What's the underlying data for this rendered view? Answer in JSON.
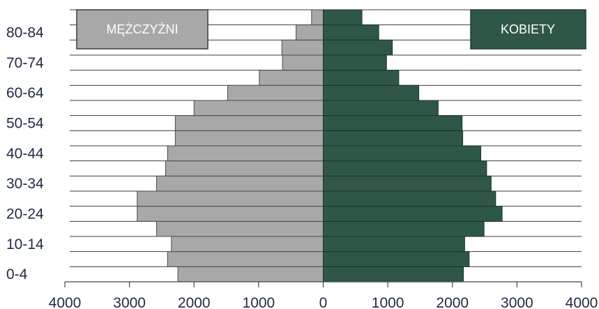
{
  "chart_data": {
    "type": "bar",
    "orientation": "horizontal",
    "layout": "population-pyramid",
    "grid": true,
    "age_groups": [
      "0-4",
      "5-9",
      "10-14",
      "15-19",
      "20-24",
      "25-29",
      "30-34",
      "35-39",
      "40-44",
      "45-49",
      "50-54",
      "55-59",
      "60-64",
      "65-69",
      "70-74",
      "75-79",
      "80-84",
      "85+"
    ],
    "visible_age_labels": [
      "0-4",
      "10-14",
      "20-24",
      "30-34",
      "40-44",
      "50-54",
      "60-64",
      "70-74",
      "80-84"
    ],
    "series": [
      {
        "name": "MĘŻCZYŹNI",
        "side": "left",
        "color": "#a8a8a8",
        "values": [
          2250,
          2410,
          2350,
          2580,
          2880,
          2880,
          2580,
          2440,
          2410,
          2290,
          2290,
          2000,
          1480,
          990,
          630,
          640,
          420,
          180
        ]
      },
      {
        "name": "KOBIETY",
        "side": "right",
        "color": "#2f5747",
        "values": [
          2170,
          2260,
          2190,
          2490,
          2770,
          2670,
          2600,
          2530,
          2440,
          2160,
          2150,
          1780,
          1480,
          1170,
          980,
          1070,
          860,
          600
        ]
      }
    ],
    "xaxis": {
      "range": [
        -4000,
        4000
      ],
      "ticks": [
        -4000,
        -3000,
        -2000,
        -1000,
        0,
        1000,
        2000,
        3000,
        4000
      ],
      "tick_labels": [
        "4000",
        "3000",
        "2000",
        "1000",
        "0",
        "1000",
        "2000",
        "3000",
        "4000"
      ]
    }
  }
}
